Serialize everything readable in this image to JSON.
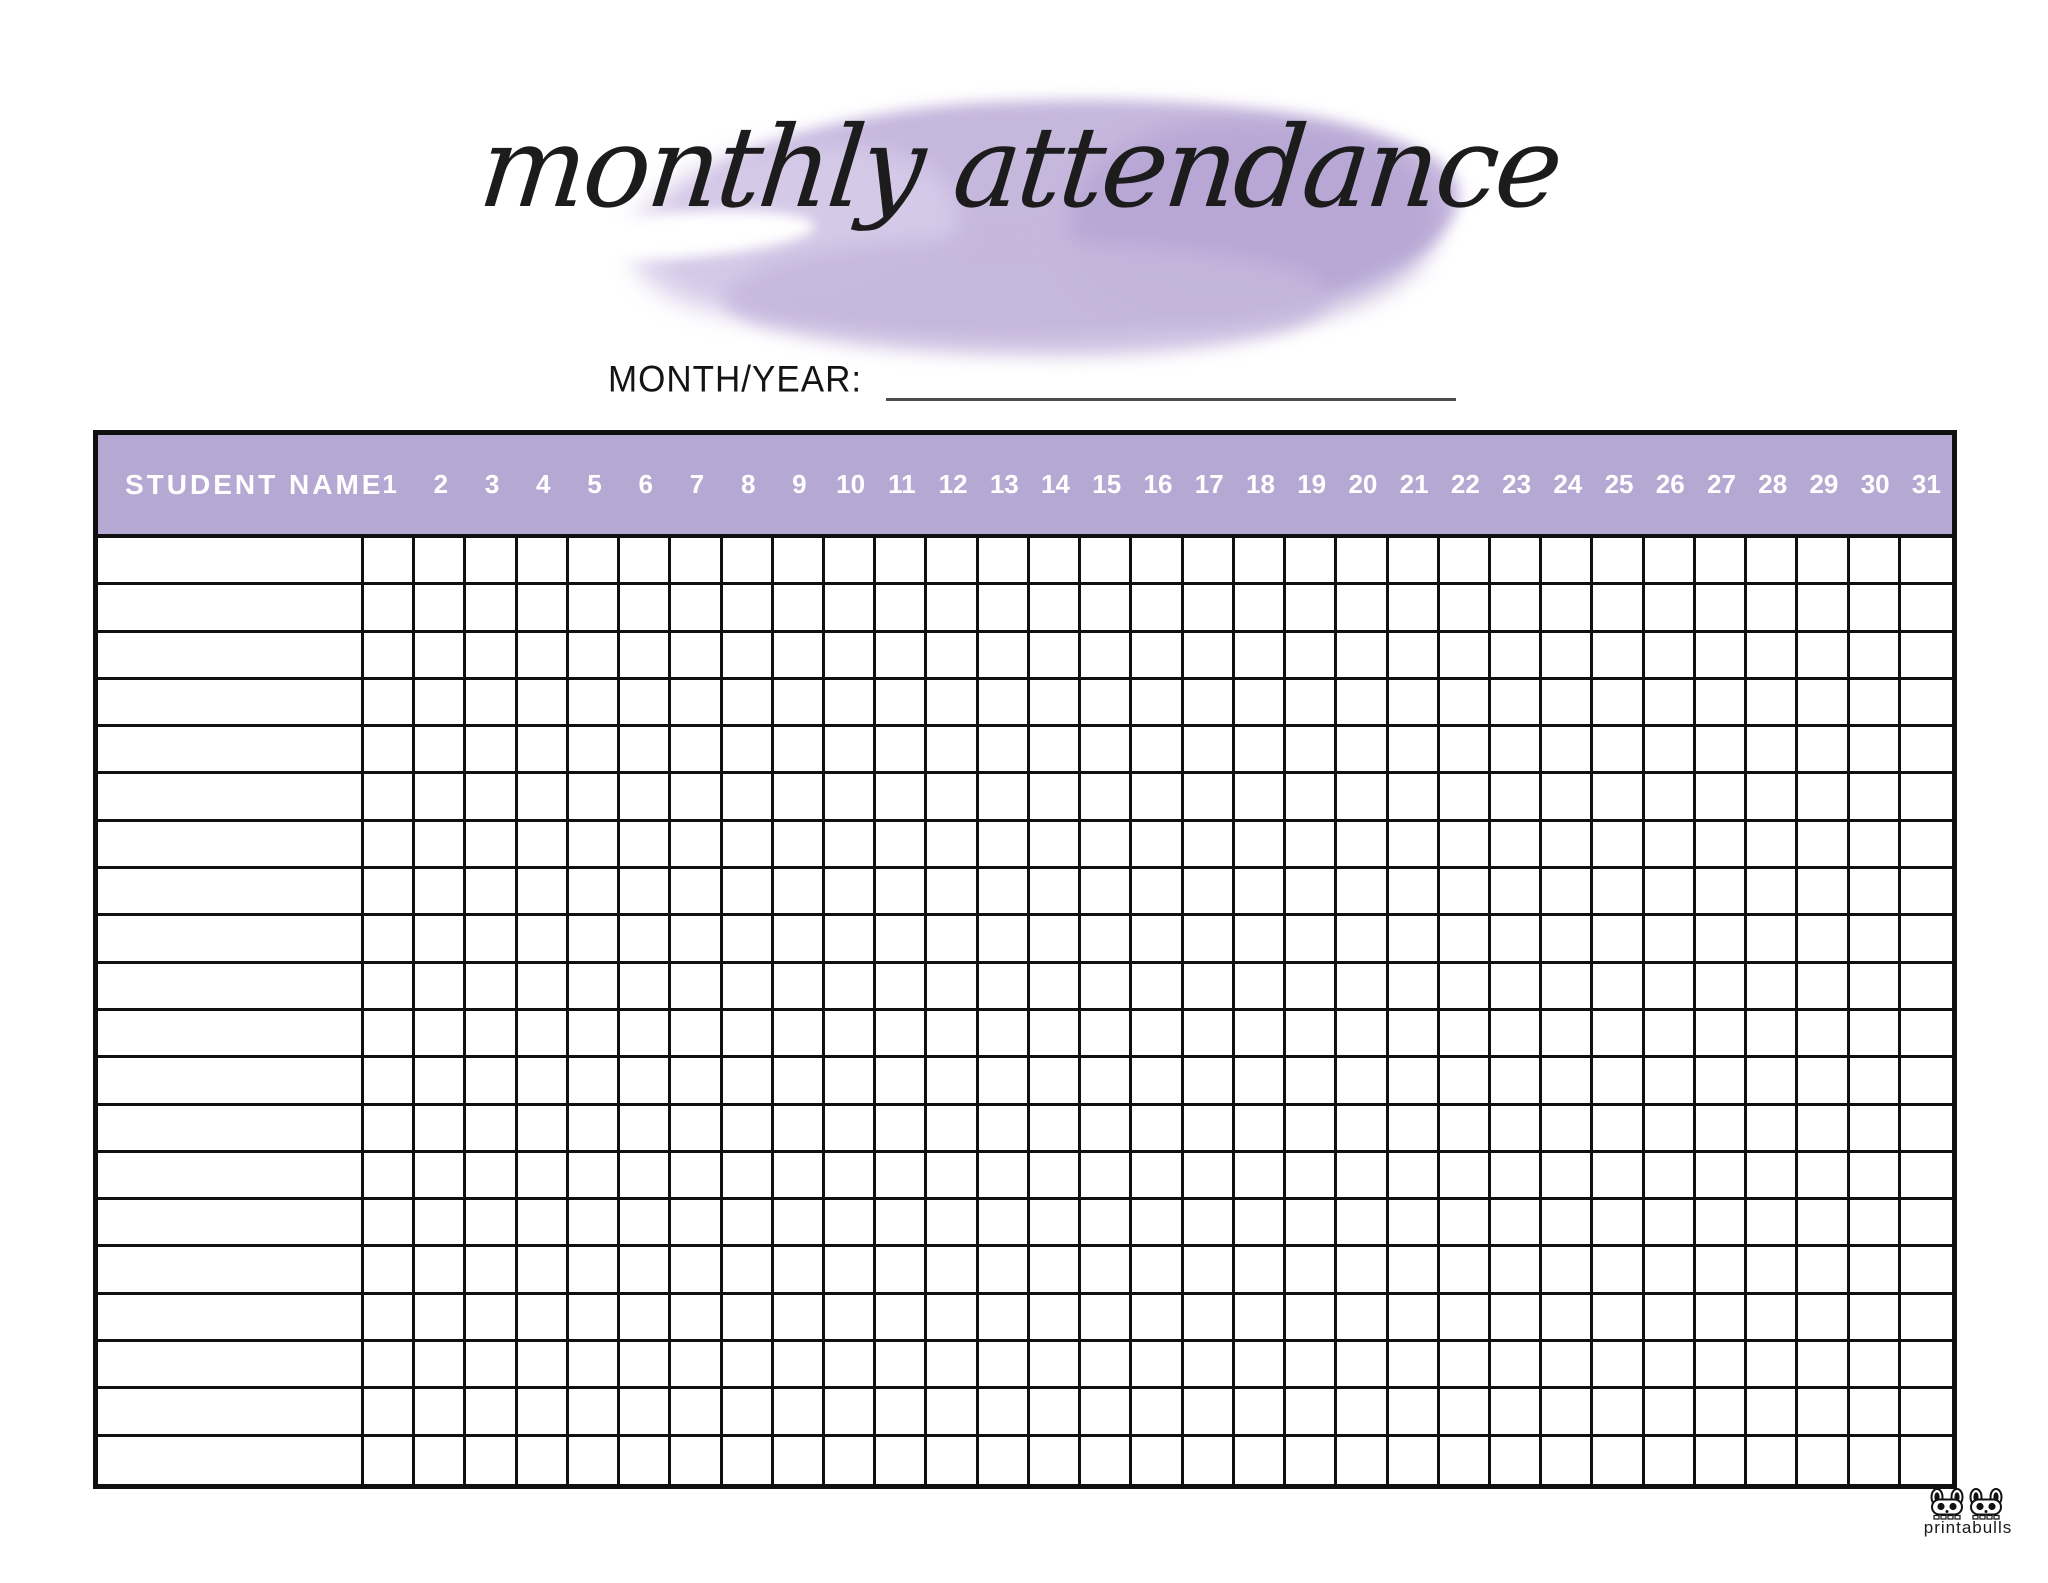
{
  "header": {
    "title": "monthly attendance",
    "month_year_label": "MONTH/YEAR:",
    "month_year_value": ""
  },
  "table": {
    "student_name_header": "STUDENT NAME",
    "day_headers": [
      "1",
      "2",
      "3",
      "4",
      "5",
      "6",
      "7",
      "8",
      "9",
      "10",
      "11",
      "12",
      "13",
      "14",
      "15",
      "16",
      "17",
      "18",
      "19",
      "20",
      "21",
      "22",
      "23",
      "24",
      "25",
      "26",
      "27",
      "28",
      "29",
      "30",
      "31"
    ],
    "row_count": 20,
    "cells_empty": true
  },
  "branding": {
    "logo_text": "printabulls",
    "logo_icon": "two-bulldogs-icon"
  },
  "theme": {
    "header_bg": "#b5a9d3",
    "watercolor_main": "#c6b7dd",
    "watercolor_light": "#d6cbe9",
    "watercolor_dark": "#b1a0d1",
    "grid_color": "#101010",
    "title_color": "#1c1c1c"
  }
}
